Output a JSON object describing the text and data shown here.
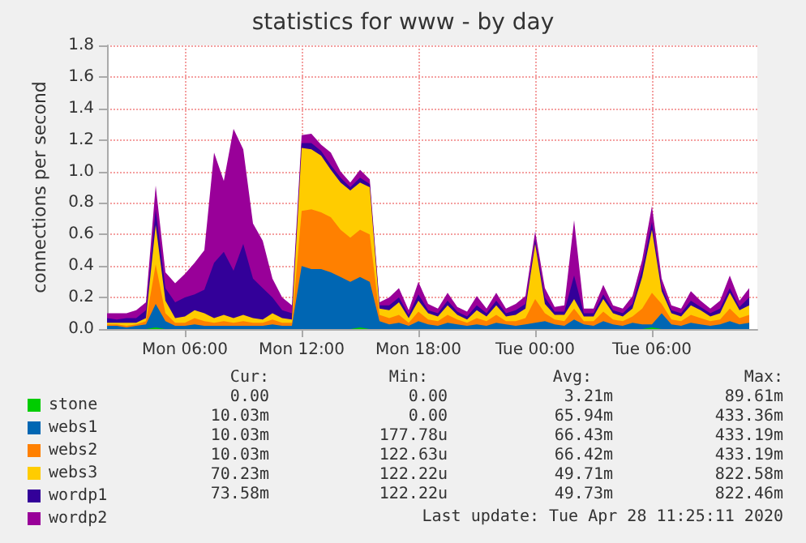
{
  "chart_data": {
    "type": "area",
    "title": "statistics for www - by day",
    "ylabel": "connections per second",
    "stacked": true,
    "x": [
      "2020-04-27T02:00",
      "2020-04-27T02:30",
      "2020-04-27T03:00",
      "2020-04-27T03:30",
      "2020-04-27T04:00",
      "2020-04-27T04:30",
      "2020-04-27T05:00",
      "2020-04-27T05:30",
      "2020-04-27T06:00",
      "2020-04-27T06:30",
      "2020-04-27T07:00",
      "2020-04-27T07:30",
      "2020-04-27T08:00",
      "2020-04-27T08:30",
      "2020-04-27T09:00",
      "2020-04-27T09:30",
      "2020-04-27T10:00",
      "2020-04-27T10:30",
      "2020-04-27T11:00",
      "2020-04-27T11:30",
      "2020-04-27T12:00",
      "2020-04-27T12:30",
      "2020-04-27T13:00",
      "2020-04-27T13:30",
      "2020-04-27T14:00",
      "2020-04-27T14:30",
      "2020-04-27T15:00",
      "2020-04-27T15:30",
      "2020-04-27T16:00",
      "2020-04-27T16:30",
      "2020-04-27T17:00",
      "2020-04-27T17:30",
      "2020-04-27T18:00",
      "2020-04-27T18:30",
      "2020-04-27T19:00",
      "2020-04-27T19:30",
      "2020-04-27T20:00",
      "2020-04-27T20:30",
      "2020-04-27T21:00",
      "2020-04-27T21:30",
      "2020-04-27T22:00",
      "2020-04-27T22:30",
      "2020-04-27T23:00",
      "2020-04-27T23:30",
      "2020-04-28T00:00",
      "2020-04-28T00:30",
      "2020-04-28T01:00",
      "2020-04-28T01:30",
      "2020-04-28T02:00",
      "2020-04-28T02:30",
      "2020-04-28T03:00",
      "2020-04-28T03:30",
      "2020-04-28T04:00",
      "2020-04-28T04:30",
      "2020-04-28T05:00",
      "2020-04-28T05:30",
      "2020-04-28T06:00",
      "2020-04-28T06:30",
      "2020-04-28T07:00",
      "2020-04-28T07:30",
      "2020-04-28T08:00",
      "2020-04-28T08:30",
      "2020-04-28T09:00",
      "2020-04-28T09:30",
      "2020-04-28T10:00",
      "2020-04-28T10:30",
      "2020-04-28T11:00"
    ],
    "series": [
      {
        "name": "stone",
        "color": "#00cc00",
        "values": [
          0,
          0,
          0,
          0,
          0,
          0.01,
          0,
          0,
          0,
          0,
          0,
          0,
          0,
          0,
          0,
          0,
          0,
          0,
          0,
          0,
          0,
          0,
          0,
          0,
          0,
          0,
          0.01,
          0,
          0,
          0,
          0,
          0,
          0,
          0,
          0,
          0,
          0,
          0,
          0,
          0,
          0,
          0,
          0,
          0,
          0,
          0,
          0,
          0,
          0,
          0,
          0,
          0,
          0,
          0,
          0,
          0,
          0.01,
          0,
          0,
          0,
          0,
          0,
          0,
          0,
          0,
          0,
          0
        ]
      },
      {
        "name": "webs1",
        "color": "#0066b3",
        "values": [
          0.02,
          0.02,
          0.01,
          0.02,
          0.03,
          0.15,
          0.05,
          0.02,
          0.02,
          0.03,
          0.02,
          0.02,
          0.02,
          0.02,
          0.02,
          0.02,
          0.02,
          0.03,
          0.02,
          0.02,
          0.4,
          0.38,
          0.38,
          0.36,
          0.33,
          0.3,
          0.32,
          0.3,
          0.05,
          0.03,
          0.04,
          0.02,
          0.05,
          0.03,
          0.02,
          0.04,
          0.03,
          0.02,
          0.03,
          0.02,
          0.04,
          0.03,
          0.02,
          0.03,
          0.04,
          0.05,
          0.03,
          0.02,
          0.06,
          0.03,
          0.02,
          0.05,
          0.03,
          0.02,
          0.04,
          0.03,
          0.02,
          0.1,
          0.03,
          0.02,
          0.04,
          0.03,
          0.02,
          0.03,
          0.05,
          0.03,
          0.04
        ]
      },
      {
        "name": "webs2",
        "color": "#ff8000",
        "values": [
          0.01,
          0.01,
          0.01,
          0.01,
          0.02,
          0.25,
          0.05,
          0.02,
          0.02,
          0.04,
          0.03,
          0.02,
          0.03,
          0.02,
          0.03,
          0.02,
          0.02,
          0.03,
          0.02,
          0.02,
          0.35,
          0.38,
          0.36,
          0.35,
          0.3,
          0.28,
          0.3,
          0.3,
          0.04,
          0.04,
          0.05,
          0.02,
          0.06,
          0.03,
          0.03,
          0.05,
          0.03,
          0.02,
          0.04,
          0.03,
          0.05,
          0.02,
          0.03,
          0.04,
          0.15,
          0.05,
          0.03,
          0.03,
          0.07,
          0.02,
          0.03,
          0.06,
          0.03,
          0.03,
          0.04,
          0.1,
          0.2,
          0.06,
          0.03,
          0.03,
          0.05,
          0.04,
          0.03,
          0.03,
          0.08,
          0.04,
          0.05
        ]
      },
      {
        "name": "webs3",
        "color": "#ffcc00",
        "values": [
          0.01,
          0.01,
          0.02,
          0.01,
          0.02,
          0.25,
          0.08,
          0.03,
          0.04,
          0.05,
          0.05,
          0.03,
          0.04,
          0.03,
          0.04,
          0.03,
          0.02,
          0.04,
          0.03,
          0.02,
          0.4,
          0.38,
          0.36,
          0.3,
          0.3,
          0.3,
          0.3,
          0.3,
          0.04,
          0.05,
          0.08,
          0.03,
          0.07,
          0.04,
          0.03,
          0.06,
          0.03,
          0.02,
          0.05,
          0.03,
          0.06,
          0.03,
          0.04,
          0.06,
          0.35,
          0.06,
          0.03,
          0.04,
          0.06,
          0.03,
          0.03,
          0.08,
          0.04,
          0.03,
          0.05,
          0.2,
          0.4,
          0.08,
          0.04,
          0.03,
          0.06,
          0.05,
          0.03,
          0.04,
          0.1,
          0.05,
          0.06
        ]
      },
      {
        "name": "wordp1",
        "color": "#330099",
        "values": [
          0.03,
          0.02,
          0.03,
          0.03,
          0.05,
          0.1,
          0.08,
          0.1,
          0.12,
          0.1,
          0.15,
          0.35,
          0.4,
          0.3,
          0.45,
          0.25,
          0.2,
          0.1,
          0.05,
          0.04,
          0.03,
          0.04,
          0.03,
          0.03,
          0.03,
          0.02,
          0.03,
          0.02,
          0.02,
          0.03,
          0.03,
          0.02,
          0.04,
          0.02,
          0.02,
          0.03,
          0.02,
          0.02,
          0.03,
          0.02,
          0.03,
          0.02,
          0.03,
          0.03,
          0.03,
          0.04,
          0.02,
          0.02,
          0.15,
          0.02,
          0.02,
          0.03,
          0.02,
          0.02,
          0.03,
          0.05,
          0.05,
          0.03,
          0.02,
          0.02,
          0.03,
          0.02,
          0.02,
          0.03,
          0.03,
          0.02,
          0.05
        ]
      },
      {
        "name": "wordp2",
        "color": "#990099",
        "values": [
          0.03,
          0.04,
          0.03,
          0.05,
          0.05,
          0.15,
          0.1,
          0.12,
          0.15,
          0.2,
          0.25,
          0.7,
          0.45,
          0.9,
          0.6,
          0.35,
          0.3,
          0.12,
          0.08,
          0.05,
          0.05,
          0.06,
          0.04,
          0.08,
          0.04,
          0.03,
          0.05,
          0.03,
          0.02,
          0.05,
          0.06,
          0.03,
          0.08,
          0.04,
          0.03,
          0.05,
          0.03,
          0.03,
          0.06,
          0.03,
          0.05,
          0.03,
          0.04,
          0.05,
          0.05,
          0.06,
          0.03,
          0.04,
          0.35,
          0.03,
          0.03,
          0.06,
          0.03,
          0.03,
          0.05,
          0.06,
          0.1,
          0.05,
          0.03,
          0.03,
          0.06,
          0.04,
          0.03,
          0.05,
          0.08,
          0.04,
          0.06
        ]
      }
    ],
    "xlim": [
      "2020-04-27T02:00",
      "2020-04-28T11:25"
    ],
    "xticks": [
      {
        "value": "2020-04-27T06:00",
        "label": "Mon 06:00"
      },
      {
        "value": "2020-04-27T12:00",
        "label": "Mon 12:00"
      },
      {
        "value": "2020-04-27T18:00",
        "label": "Mon 18:00"
      },
      {
        "value": "2020-04-28T00:00",
        "label": "Tue 00:00"
      },
      {
        "value": "2020-04-28T06:00",
        "label": "Tue 06:00"
      }
    ],
    "ylim": [
      0,
      1.8
    ],
    "yticks": [
      {
        "value": 0,
        "label": "0.0"
      },
      {
        "value": 0.2,
        "label": "0.2"
      },
      {
        "value": 0.4,
        "label": "0.4"
      },
      {
        "value": 0.6,
        "label": "0.6"
      },
      {
        "value": 0.8,
        "label": "0.8"
      },
      {
        "value": 1.0,
        "label": "1.0"
      },
      {
        "value": 1.2,
        "label": "1.2"
      },
      {
        "value": 1.4,
        "label": "1.4"
      },
      {
        "value": 1.6,
        "label": "1.6"
      },
      {
        "value": 1.8,
        "label": "1.8"
      }
    ],
    "grid": true,
    "legend": "bottom",
    "annotations": [
      "Cur:",
      "Min:",
      "Avg:",
      "Max:",
      "0.00",
      "0.00",
      "3.21m",
      "89.61m",
      "10.03m",
      "0.00",
      "65.94m",
      "433.36m",
      "10.03m",
      "177.78u",
      "66.43m",
      "433.19m",
      "10.03m",
      "122.63u",
      "66.42m",
      "433.19m",
      "70.23m",
      "122.22u",
      "49.71m",
      "822.58m",
      "73.58m",
      "122.22u",
      "49.73m",
      "822.46m",
      "Last update: Tue Apr 28 11:25:11 2020"
    ]
  }
}
